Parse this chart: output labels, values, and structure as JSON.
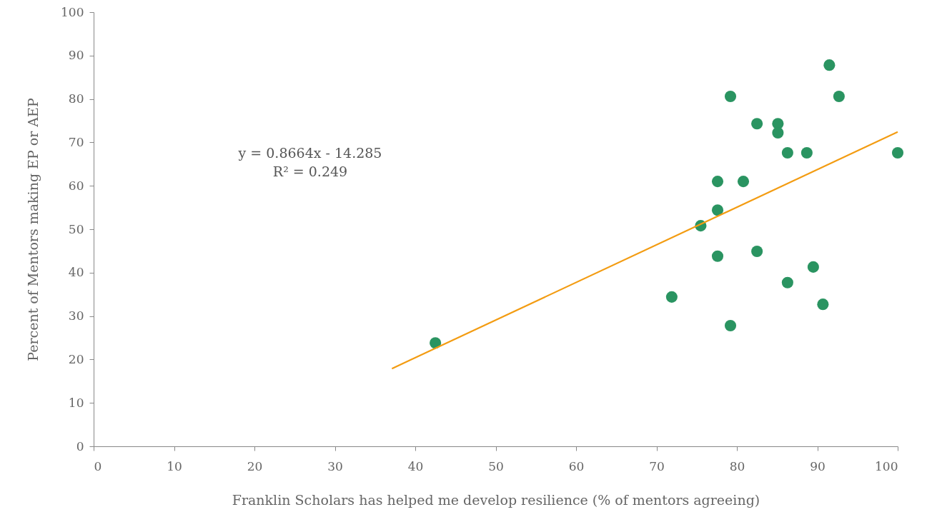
{
  "chart_data": {
    "type": "scatter",
    "xlabel": "Franklin Scholars has helped me develop resilience (% of mentors agreeing)",
    "ylabel": "Percent of Mentors making EP or AEP",
    "xlim": [
      0,
      100
    ],
    "xticks": [
      0,
      10,
      20,
      30,
      40,
      50,
      60,
      70,
      80,
      90,
      100
    ],
    "ylim": [
      0,
      100
    ],
    "yticks": [
      0,
      10,
      20,
      30,
      40,
      50,
      60,
      70,
      80,
      90,
      100
    ],
    "grid": false,
    "legend": false,
    "annotations": [
      "y = 0.8664x - 14.285",
      "R² = 0.249"
    ],
    "series": [
      {
        "marker": "circle",
        "color": "#2a9461",
        "x": [
          42.5,
          71.9,
          75.5,
          77.6,
          77.6,
          77.6,
          79.2,
          79.2,
          80.8,
          82.5,
          82.5,
          85.1,
          85.1,
          86.3,
          86.3,
          88.7,
          89.5,
          90.7,
          91.5,
          92.7,
          100
        ],
        "values": [
          23.8,
          34.4,
          50.8,
          54.4,
          61.0,
          43.8,
          80.6,
          27.8,
          61.0,
          74.3,
          44.9,
          74.3,
          72.2,
          67.6,
          37.7,
          67.6,
          41.3,
          32.7,
          87.8,
          80.6,
          67.6
        ]
      },
      {
        "type": "line",
        "marker": "none",
        "color": "#f39c12",
        "x": [
          37.1,
          100
        ],
        "values": [
          17.9,
          72.4
        ]
      }
    ]
  }
}
